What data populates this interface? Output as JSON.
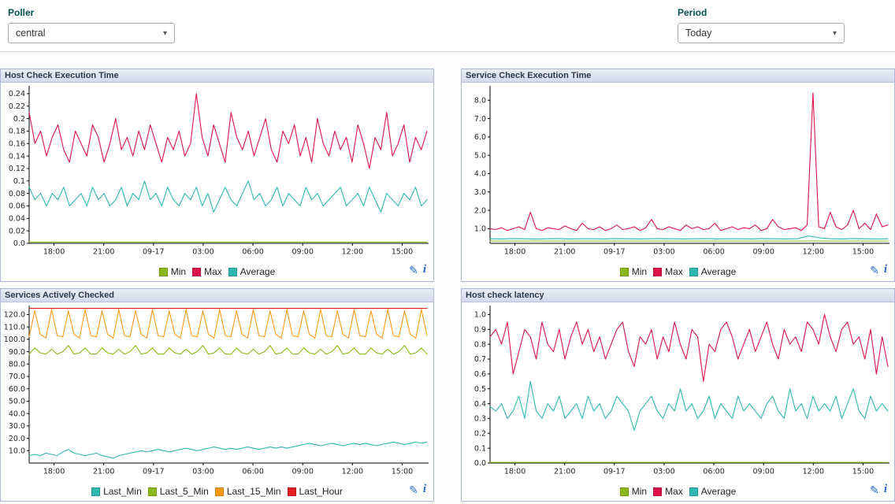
{
  "filters": {
    "poller": {
      "label": "Poller",
      "value": "central"
    },
    "period": {
      "label": "Period",
      "value": "Today"
    }
  },
  "icons": {
    "pencil": "✎",
    "info": "i",
    "chevron": "▾"
  },
  "colors": {
    "max_red": "#dc1248",
    "average_teal": "#2eb8af",
    "min_green": "#8bb917",
    "last_15_min_orange": "#ff9a13",
    "last_hour_red": "#e32020",
    "filter_label_text": "#00534f",
    "panel_border": "#aab7d6",
    "icon_blue": "#2468c5"
  },
  "chart_data": [
    {
      "type": "line",
      "title": "Host Check Execution Time",
      "ylim": [
        0,
        0.25
      ],
      "yticks": [
        0,
        0.02,
        0.04,
        0.06,
        0.08,
        0.1,
        0.12,
        0.14,
        0.16,
        0.18,
        0.2,
        0.22,
        0.24
      ],
      "ytick_labels": [
        "0.0",
        "0.02",
        "0.04",
        "0.06",
        "0.08",
        "0.1",
        "0.12",
        "0.14",
        "0.16",
        "0.18",
        "0.2",
        "0.22",
        "0.24"
      ],
      "xtick_pos": [
        0.0625,
        0.1875,
        0.3125,
        0.4375,
        0.5625,
        0.6875,
        0.8125,
        0.9375
      ],
      "xtick_labels": [
        "18:00",
        "21:00",
        "09-17",
        "03:00",
        "06:00",
        "09:00",
        "12:00",
        "15:00"
      ],
      "legend_position": "bottom",
      "grid": false,
      "series": [
        {
          "name": "Min",
          "color": "#8bb917",
          "values": [
            0.002,
            0.002
          ]
        },
        {
          "name": "Max",
          "color": "#dc1248",
          "values": [
            0.21,
            0.16,
            0.18,
            0.14,
            0.17,
            0.19,
            0.15,
            0.13,
            0.18,
            0.16,
            0.14,
            0.19,
            0.17,
            0.13,
            0.16,
            0.2,
            0.15,
            0.17,
            0.14,
            0.18,
            0.15,
            0.19,
            0.16,
            0.13,
            0.17,
            0.15,
            0.18,
            0.14,
            0.16,
            0.24,
            0.17,
            0.14,
            0.19,
            0.16,
            0.13,
            0.21,
            0.17,
            0.15,
            0.18,
            0.14,
            0.17,
            0.2,
            0.15,
            0.13,
            0.18,
            0.16,
            0.19,
            0.14,
            0.17,
            0.13,
            0.2,
            0.16,
            0.14,
            0.18,
            0.15,
            0.17,
            0.13,
            0.19,
            0.16,
            0.12,
            0.17,
            0.15,
            0.21,
            0.14,
            0.16,
            0.19,
            0.13,
            0.17,
            0.15,
            0.18
          ]
        },
        {
          "name": "Average",
          "color": "#2eb8af",
          "values": [
            0.09,
            0.07,
            0.08,
            0.06,
            0.08,
            0.07,
            0.09,
            0.06,
            0.07,
            0.08,
            0.06,
            0.09,
            0.07,
            0.08,
            0.06,
            0.07,
            0.09,
            0.06,
            0.08,
            0.07,
            0.1,
            0.07,
            0.08,
            0.06,
            0.09,
            0.07,
            0.06,
            0.08,
            0.07,
            0.09,
            0.06,
            0.08,
            0.05,
            0.07,
            0.09,
            0.07,
            0.06,
            0.08,
            0.1,
            0.07,
            0.08,
            0.06,
            0.07,
            0.09,
            0.06,
            0.08,
            0.07,
            0.06,
            0.09,
            0.07,
            0.08,
            0.06,
            0.07,
            0.08,
            0.09,
            0.06,
            0.07,
            0.08,
            0.06,
            0.09,
            0.07,
            0.05,
            0.08,
            0.07,
            0.06,
            0.08,
            0.07,
            0.09,
            0.06,
            0.07
          ]
        }
      ]
    },
    {
      "type": "line",
      "title": "Service Check Execution Time",
      "ylim": [
        0.2,
        8.7
      ],
      "yticks": [
        1,
        2,
        3,
        4,
        5,
        6,
        7,
        8
      ],
      "ytick_labels": [
        "1.0",
        "2.0",
        "3.0",
        "4.0",
        "5.0",
        "6.0",
        "7.0",
        "8.0"
      ],
      "xtick_pos": [
        0.0625,
        0.1875,
        0.3125,
        0.4375,
        0.5625,
        0.6875,
        0.8125,
        0.9375
      ],
      "xtick_labels": [
        "18:00",
        "21:00",
        "09-17",
        "03:00",
        "06:00",
        "09:00",
        "12:00",
        "15:00"
      ],
      "legend_position": "bottom",
      "grid": false,
      "series": [
        {
          "name": "Min",
          "color": "#8bb917",
          "values": [
            0.33,
            0.33
          ]
        },
        {
          "name": "Max",
          "color": "#dc1248",
          "values": [
            1.0,
            0.95,
            1.05,
            0.9,
            1.0,
            1.1,
            0.95,
            1.9,
            1.0,
            0.9,
            1.05,
            1.0,
            0.95,
            1.15,
            1.0,
            0.9,
            1.3,
            1.0,
            0.95,
            1.1,
            0.9,
            1.0,
            1.2,
            0.95,
            1.0,
            1.1,
            0.9,
            1.05,
            1.5,
            1.0,
            0.95,
            1.1,
            1.0,
            0.9,
            1.2,
            1.0,
            1.1,
            0.95,
            1.0,
            1.3,
            0.9,
            1.0,
            1.1,
            0.95,
            1.05,
            1.0,
            1.2,
            0.9,
            1.0,
            1.5,
            1.1,
            0.95,
            1.0,
            1.05,
            0.9,
            1.2,
            8.4,
            1.1,
            1.0,
            1.9,
            1.1,
            0.95,
            1.2,
            2.0,
            1.0,
            1.3,
            0.95,
            1.8,
            1.1,
            1.2
          ]
        },
        {
          "name": "Average",
          "color": "#2eb8af",
          "values": [
            0.45,
            0.44,
            0.46,
            0.45,
            0.43,
            0.45,
            0.46,
            0.44,
            0.45,
            0.45,
            0.44,
            0.46,
            0.45,
            0.44,
            0.45,
            0.46,
            0.45,
            0.44,
            0.45,
            0.46,
            0.44,
            0.45,
            0.45,
            0.44,
            0.46,
            0.45,
            0.44,
            0.45,
            0.6,
            0.5,
            0.45,
            0.44,
            0.46,
            0.45,
            0.44,
            0.45
          ]
        }
      ]
    },
    {
      "type": "line",
      "title": "Services Actively Checked",
      "ylim": [
        0,
        126
      ],
      "yticks": [
        10,
        20,
        30,
        40,
        50,
        60,
        70,
        80,
        90,
        100,
        110,
        120
      ],
      "ytick_labels": [
        "10.0",
        "20.0",
        "30.0",
        "40.0",
        "50.0",
        "60.0",
        "70.0",
        "80.0",
        "90.0",
        "100.0",
        "110.0",
        "120.0"
      ],
      "xtick_pos": [
        0.0625,
        0.1875,
        0.3125,
        0.4375,
        0.5625,
        0.6875,
        0.8125,
        0.9375
      ],
      "xtick_labels": [
        "18:00",
        "21:00",
        "09-17",
        "03:00",
        "06:00",
        "09:00",
        "12:00",
        "15:00"
      ],
      "legend_position": "bottom",
      "grid": false,
      "series": [
        {
          "name": "Last_Min",
          "color": "#2eb8af",
          "values": [
            6,
            7,
            6,
            8,
            7,
            6,
            9,
            11,
            8,
            7,
            6,
            7,
            8,
            6,
            5,
            4,
            6,
            7,
            8,
            9,
            10,
            9,
            10,
            11,
            10,
            9,
            10,
            11,
            12,
            11,
            10,
            11,
            12,
            13,
            12,
            11,
            12,
            11,
            12,
            13,
            12,
            11,
            12,
            13,
            12,
            13,
            12,
            13,
            14,
            15,
            16,
            15,
            14,
            15,
            16,
            15,
            14,
            15,
            16,
            15,
            16,
            15,
            14,
            15,
            16,
            17,
            16,
            15,
            16,
            17,
            16,
            17
          ]
        },
        {
          "name": "Last_5_Min",
          "color": "#8bb917",
          "values": [
            88,
            93,
            89,
            88,
            92,
            88,
            90,
            95,
            88,
            89,
            93,
            88,
            88,
            93,
            89,
            88,
            92,
            88,
            90,
            95,
            88,
            89,
            93,
            88,
            88,
            93,
            89,
            88,
            92,
            88,
            90,
            95,
            88,
            89,
            93,
            88,
            88,
            93,
            89,
            88,
            92,
            88,
            90,
            95,
            88,
            89,
            93,
            88,
            88,
            93,
            89,
            88,
            92,
            88,
            90,
            95,
            88,
            89,
            93,
            88,
            88,
            93,
            89,
            88,
            92,
            88,
            90,
            95,
            88,
            89,
            93,
            88
          ]
        },
        {
          "name": "Last_15_Min",
          "color": "#ff9a13",
          "values": [
            102,
            123,
            104,
            101,
            124,
            103,
            102,
            123,
            104,
            101,
            124,
            103,
            102,
            123,
            104,
            101,
            124,
            103,
            102,
            123,
            104,
            101,
            124,
            103,
            102,
            123,
            104,
            101,
            124,
            103,
            102,
            123,
            104,
            101,
            124,
            103,
            102,
            123,
            104,
            101,
            124,
            103,
            102,
            123,
            104,
            101,
            124,
            103,
            102,
            123,
            104,
            101,
            124,
            103,
            102,
            123,
            104,
            101,
            124,
            103,
            102,
            123,
            104,
            101,
            124,
            103,
            102,
            123,
            104,
            101,
            124,
            103
          ]
        },
        {
          "name": "Last_Hour",
          "color": "#e32020",
          "values": [
            125,
            125
          ]
        }
      ]
    },
    {
      "type": "line",
      "title": "Host check latency",
      "ylim": [
        0,
        1.05
      ],
      "yticks": [
        0,
        0.1,
        0.2,
        0.3,
        0.4,
        0.5,
        0.6,
        0.7,
        0.8,
        0.9,
        1.0
      ],
      "ytick_labels": [
        "0.0",
        "0.1",
        "0.2",
        "0.3",
        "0.4",
        "0.5",
        "0.6",
        "0.7",
        "0.8",
        "0.9",
        "1.0"
      ],
      "xtick_pos": [
        0.0625,
        0.1875,
        0.3125,
        0.4375,
        0.5625,
        0.6875,
        0.8125,
        0.9375
      ],
      "xtick_labels": [
        "18:00",
        "21:00",
        "09-17",
        "03:00",
        "06:00",
        "09:00",
        "12:00",
        "15:00"
      ],
      "legend_position": "bottom",
      "grid": false,
      "series": [
        {
          "name": "Min",
          "color": "#8bb917",
          "values": [
            0.004,
            0.004
          ]
        },
        {
          "name": "Max",
          "color": "#dc1248",
          "values": [
            0.85,
            0.9,
            0.8,
            0.95,
            0.6,
            0.75,
            0.9,
            0.85,
            0.7,
            0.95,
            0.8,
            0.75,
            0.9,
            0.7,
            0.85,
            0.95,
            0.8,
            0.9,
            0.75,
            0.85,
            0.7,
            0.8,
            0.9,
            0.95,
            0.75,
            0.65,
            0.85,
            0.8,
            0.9,
            0.7,
            0.85,
            0.75,
            0.95,
            0.8,
            0.7,
            0.9,
            0.85,
            0.55,
            0.8,
            0.75,
            0.9,
            0.95,
            0.85,
            0.7,
            0.8,
            0.9,
            0.75,
            0.85,
            0.95,
            0.8,
            0.7,
            0.9,
            0.8,
            0.85,
            0.75,
            0.95,
            0.9,
            0.8,
            1.0,
            0.85,
            0.75,
            0.9,
            0.95,
            0.8,
            0.85,
            0.7,
            0.9,
            0.6,
            0.85,
            0.65
          ]
        },
        {
          "name": "Average",
          "color": "#2eb8af",
          "values": [
            0.38,
            0.35,
            0.4,
            0.3,
            0.35,
            0.45,
            0.3,
            0.55,
            0.35,
            0.3,
            0.4,
            0.35,
            0.45,
            0.3,
            0.35,
            0.4,
            0.3,
            0.45,
            0.35,
            0.4,
            0.3,
            0.35,
            0.45,
            0.4,
            0.35,
            0.22,
            0.35,
            0.4,
            0.45,
            0.35,
            0.3,
            0.4,
            0.35,
            0.5,
            0.35,
            0.4,
            0.3,
            0.35,
            0.45,
            0.3,
            0.4,
            0.35,
            0.3,
            0.45,
            0.35,
            0.4,
            0.35,
            0.3,
            0.4,
            0.45,
            0.35,
            0.3,
            0.5,
            0.35,
            0.4,
            0.3,
            0.45,
            0.35,
            0.4,
            0.35,
            0.45,
            0.3,
            0.4,
            0.5,
            0.35,
            0.3,
            0.45,
            0.35,
            0.4,
            0.35
          ]
        }
      ]
    }
  ]
}
